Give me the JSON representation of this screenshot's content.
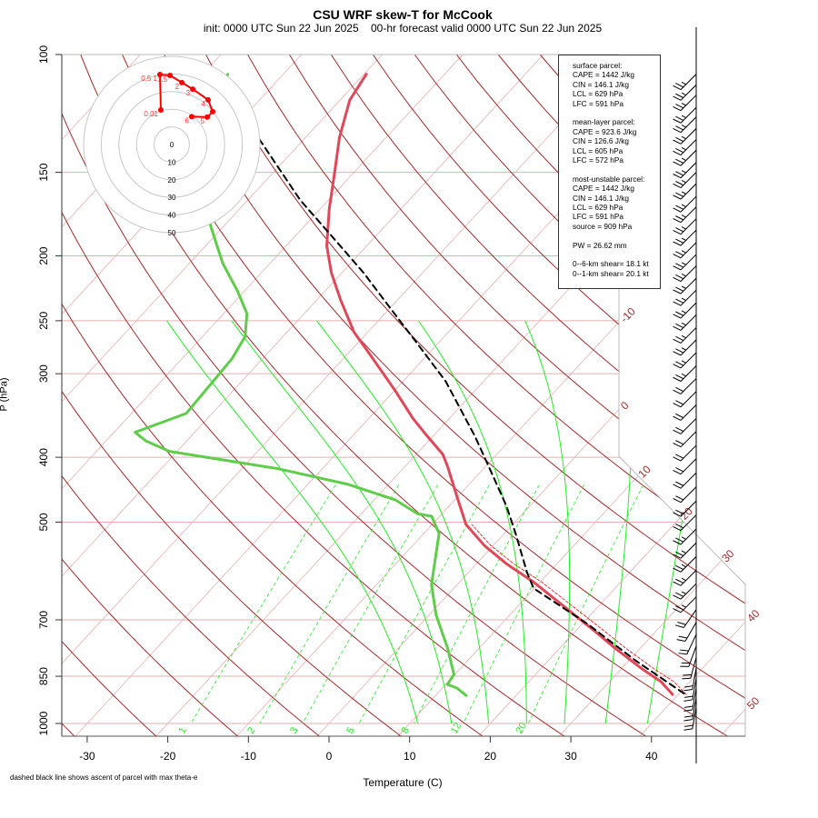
{
  "title": "CSU WRF skew-T for McCook",
  "subtitle": "init: 0000 UTC Sun 22 Jun 2025    00-hr forecast valid 0000 UTC Sun 22 Jun 2025",
  "footnote": "dashed black line shows ascent of parcel with max theta-e",
  "info": {
    "surface": [
      "surface parcel:",
      "CAPE = 1442 J/kg",
      "CIN = 146.1 J/kg",
      "LCL = 629 hPa",
      "LFC = 591 hPa"
    ],
    "mean_layer": [
      "mean-layer parcel:",
      "CAPE = 923.6 J/kg",
      "CIN = 126.6 J/kg",
      "LCL = 605 hPa",
      "LFC = 572 hPa"
    ],
    "most_unstable": [
      "most-unstable parcel:",
      "CAPE = 1442 J/kg",
      "CIN = 146.1 J/kg",
      "LCL = 629 hPa",
      "LFC = 591 hPa",
      "source = 909 hPa"
    ],
    "pw": "PW =  26.62 mm",
    "shear": [
      "0--6-km shear= 18.1 kt",
      "0--1-km shear= 20.1 kt"
    ]
  },
  "chart_data": {
    "type": "skew-T",
    "title": "CSU WRF skew-T for McCook",
    "xlabel": "Temperature (C)",
    "ylabel": "P (hPa)",
    "x_ticks": [
      -30,
      -20,
      -10,
      0,
      10,
      20,
      30,
      40
    ],
    "x_tick_labels": [
      "-30",
      "-20",
      "-10",
      "0",
      "10",
      "20",
      "30",
      "40"
    ],
    "y_ticks": [
      100,
      150,
      200,
      250,
      300,
      400,
      500,
      700,
      850,
      1000
    ],
    "y_tick_labels": [
      "100",
      "150",
      "200",
      "250",
      "300",
      "400",
      "500",
      "700",
      "850",
      "1000"
    ],
    "pressure_range": [
      100,
      1050
    ],
    "isobars": [
      150,
      200,
      250,
      300,
      400,
      500,
      700,
      850,
      1000
    ],
    "isotherm_labels": [
      "-10",
      "0",
      "10",
      "20",
      "30",
      "40",
      "50"
    ],
    "isotherm_label_values": [
      -10,
      0,
      10,
      20,
      30,
      40,
      50
    ],
    "mixing_ratio_labels": [
      "1",
      "2",
      "3",
      "5",
      "8",
      "12",
      "20"
    ],
    "mixing_ratio_values": [
      1,
      2,
      3,
      5,
      8,
      12,
      20
    ],
    "dry_adiabats_theta_K": [
      180,
      190,
      200,
      210,
      220,
      230,
      240,
      250,
      260,
      270,
      280,
      290,
      300,
      310,
      320,
      330,
      340,
      350,
      360,
      370,
      380,
      390,
      400,
      410,
      420,
      430,
      440,
      450,
      460
    ],
    "moist_adiabats_T1000_C": [
      11,
      15.2,
      19.8,
      24.5,
      29.2,
      34.3,
      39.5
    ],
    "temperature": {
      "p": [
        905,
        866,
        831,
        772,
        725,
        668,
        614,
        577,
        542,
        504,
        459,
        413,
        396,
        372,
        350,
        318,
        285,
        260,
        233,
        212,
        193,
        170,
        150,
        133,
        117,
        107
      ],
      "T": [
        39.3,
        36.4,
        32.8,
        26.9,
        22.1,
        15.7,
        9.1,
        3.7,
        -1.1,
        -5.8,
        -10.0,
        -14.7,
        -16.7,
        -20.7,
        -24.5,
        -29.9,
        -36.3,
        -41.7,
        -47.0,
        -51.3,
        -55.0,
        -58.9,
        -62.4,
        -65.8,
        -68.8,
        -69.7
      ]
    },
    "virtual_temperature": {
      "p": [
        905,
        866,
        831,
        772,
        725,
        668,
        614,
        577,
        542,
        504
      ],
      "T": [
        41.0,
        38.0,
        34.3,
        28.2,
        23.3,
        16.8,
        10.1,
        4.6,
        -0.3,
        -5.1
      ]
    },
    "dewpoint": {
      "p": [
        908,
        885,
        874,
        845,
        772,
        689,
        620,
        520,
        490,
        486,
        463,
        439,
        416,
        392,
        378,
        367,
        344,
        285,
        264,
        244,
        226,
        205,
        181,
        170,
        150,
        125,
        107
      ],
      "T": [
        13.8,
        11.8,
        10.2,
        9.9,
        6.1,
        0.9,
        -3.2,
        -8.1,
        -11.0,
        -13.0,
        -17.4,
        -25.0,
        -35.5,
        -50.9,
        -55.1,
        -57.4,
        -53.2,
        -53.8,
        -54.7,
        -57.1,
        -60.8,
        -65.9,
        -71.5,
        -74.0,
        -78.0,
        -83.0,
        -86.9
      ]
    },
    "parcel": {
      "p": [
        902,
        806,
        711,
        628,
        595,
        520,
        473,
        418,
        372,
        308,
        272,
        240,
        212,
        187,
        165,
        133
      ],
      "T": [
        40.6,
        30.9,
        20.8,
        9.9,
        7.3,
        1.4,
        -2.9,
        -9.0,
        -14.8,
        -24.7,
        -32.2,
        -39.8,
        -47.3,
        -55.4,
        -63.5,
        -75.9
      ]
    },
    "wind_barbs": {
      "p": [
        107,
        111,
        115,
        120,
        124,
        129,
        134,
        139,
        145,
        150,
        156,
        163,
        169,
        176,
        183,
        191,
        199,
        207,
        216,
        225,
        235,
        245,
        256,
        267,
        279,
        292,
        305,
        319,
        334,
        350,
        366,
        384,
        402,
        422,
        443,
        465,
        488,
        512,
        537,
        563,
        590,
        618,
        647,
        676,
        706,
        736,
        766,
        796,
        826,
        856,
        886,
        916,
        946
      ],
      "dir": [
        225,
        225,
        225,
        225,
        225,
        225,
        225,
        225,
        225,
        225,
        225,
        225,
        225,
        225,
        225,
        225,
        225,
        225,
        225,
        225,
        225,
        225,
        225,
        225,
        225,
        225,
        225,
        225,
        225,
        225,
        225,
        225,
        225,
        225,
        225,
        225,
        225,
        225,
        225,
        225,
        225,
        225,
        225,
        215,
        210,
        205,
        200,
        195,
        190,
        190,
        190,
        190,
        190
      ],
      "spd": [
        25,
        25,
        25,
        25,
        25,
        25,
        25,
        25,
        25,
        25,
        25,
        25,
        25,
        25,
        25,
        25,
        25,
        25,
        25,
        25,
        25,
        25,
        25,
        25,
        25,
        25,
        20,
        20,
        20,
        20,
        20,
        20,
        20,
        20,
        20,
        20,
        20,
        25,
        25,
        25,
        25,
        25,
        25,
        20,
        20,
        20,
        20,
        20,
        20,
        20,
        20,
        20,
        20
      ]
    },
    "hodograph": {
      "ring_labels": [
        "0",
        "10",
        "20",
        "30",
        "40",
        "50"
      ],
      "ring_values": [
        0,
        10,
        20,
        30,
        40,
        50
      ],
      "u": [
        -6.2,
        -6.7,
        -1.0,
        5.7,
        11.9,
        20.6,
        23.2,
        20.1,
        11.3
      ],
      "v": [
        19.6,
        39.7,
        39.2,
        35.1,
        31.4,
        25.3,
        18.6,
        15.5,
        15.8
      ],
      "labels": [
        "0.01",
        "0.5 1",
        "1.5",
        "2",
        "3",
        "4",
        "",
        "5",
        "6"
      ]
    },
    "colors": {
      "temperature": "#e0485a",
      "dewpoint": "#5fcc4a",
      "parcel": "#000000",
      "dry_adiabat": "#a52a2a",
      "moist_adiabat": "#22ee22",
      "mixing_ratio": "#22ee22",
      "isotherm": "#e8b0b0",
      "isobar": "#e0b0b0",
      "hodograph": "#ff0000"
    }
  }
}
